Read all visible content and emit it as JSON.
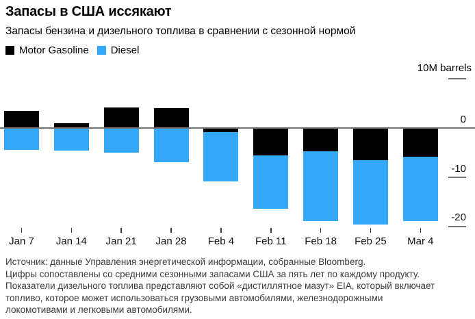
{
  "header": {
    "title": "Запасы в США иссякают",
    "subtitle": "Запасы бензина и дизельного топлива в сравнении с сезонной нормой"
  },
  "legend": {
    "items": [
      {
        "label": "Motor Gasoline",
        "color": "#000000"
      },
      {
        "label": "Diesel",
        "color": "#35a8f9"
      }
    ]
  },
  "axis": {
    "unit_label": "10M barrels",
    "y_tick_labels": [
      "0",
      "-10",
      "-20"
    ],
    "x_tick_labels": [
      "Jan 7",
      "Jan 14",
      "Jan 21",
      "Jan 28",
      "Feb 4",
      "Feb 11",
      "Feb 18",
      "Feb 25",
      "Mar 4"
    ]
  },
  "chart_data": {
    "type": "bar",
    "stacked": true,
    "title": "Запасы в США иссякают",
    "subtitle": "Запасы бензина и дизельного топлива в сравнении с сезонной нормой",
    "ylabel": "10M barrels",
    "xlabel": "",
    "ylim": [
      -22,
      10
    ],
    "y_gridlines": [
      10,
      0,
      -10,
      -20
    ],
    "legend_position": "top-left",
    "categories": [
      "Jan 7",
      "Jan 14",
      "Jan 21",
      "Jan 28",
      "Feb 4",
      "Feb 11",
      "Feb 18",
      "Feb 25",
      "Mar 4"
    ],
    "series": [
      {
        "name": "Motor Gasoline",
        "color": "#000000",
        "values": [
          3.5,
          1.0,
          4.2,
          4.1,
          -0.8,
          -5.6,
          -4.7,
          -6.5,
          -5.9
        ]
      },
      {
        "name": "Diesel",
        "color": "#35a8f9",
        "values": [
          -4.5,
          -4.6,
          -5.0,
          -6.9,
          -10.1,
          -10.8,
          -14.3,
          -13.2,
          -13.1
        ]
      }
    ]
  },
  "footer": {
    "lines": [
      "Источник: данные Управления энергетической информации, собранные Bloomberg.",
      "Цифры сопоставлены со средними сезонными запасами США за пять лет по каждому продукту.",
      "Показатели дизельного топлива представляют собой «дистиллятное мазут» EIA, который включает",
      "топливо, которое может использоваться грузовыми автомобилями, железнодорожными",
      "локомотивами и легковыми автомобилями."
    ]
  }
}
